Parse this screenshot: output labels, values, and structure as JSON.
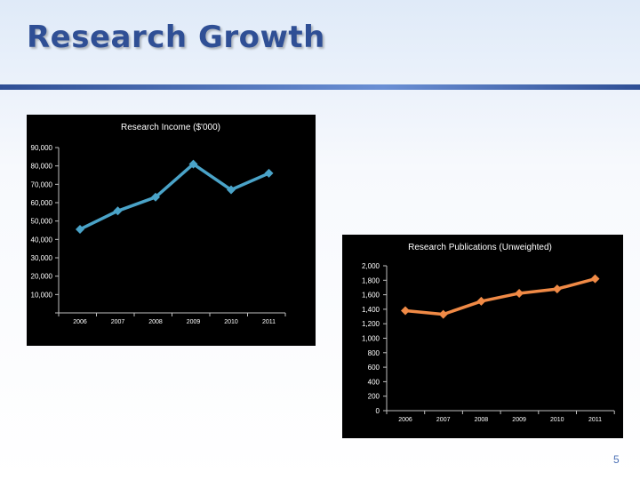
{
  "slide": {
    "title": "Research Growth",
    "page_number": "5"
  },
  "colors": {
    "title": "#2f4f95",
    "plot_bg": "#000000",
    "income_line": "#4aa3c8",
    "publications_line": "#f08a46"
  },
  "chart_data": [
    {
      "type": "line",
      "title": "Research Income ($'000)",
      "xlabel": "",
      "ylabel": "",
      "categories": [
        "2006",
        "2007",
        "2008",
        "2009",
        "2010",
        "2011"
      ],
      "series": [
        {
          "values": [
            45500,
            55500,
            63000,
            81000,
            67000,
            76000
          ]
        }
      ],
      "ylim": [
        0,
        90000
      ],
      "yticks": [
        0,
        10000,
        20000,
        30000,
        40000,
        50000,
        60000,
        70000,
        80000,
        90000
      ],
      "ytick_labels": [
        "",
        "10,000",
        "20,000",
        "30,000",
        "40,000",
        "50,000",
        "60,000",
        "70,000",
        "80,000",
        "90,000"
      ],
      "grid": false,
      "legend": "none",
      "marker": "diamond"
    },
    {
      "type": "line",
      "title": "Research Publications (Unweighted)",
      "xlabel": "",
      "ylabel": "",
      "categories": [
        "2006",
        "2007",
        "2008",
        "2009",
        "2010",
        "2011"
      ],
      "series": [
        {
          "values": [
            1380,
            1330,
            1510,
            1620,
            1680,
            1820
          ]
        }
      ],
      "ylim": [
        0,
        2000
      ],
      "yticks": [
        0,
        200,
        400,
        600,
        800,
        1000,
        1200,
        1400,
        1600,
        1800,
        2000
      ],
      "ytick_labels": [
        "0",
        "200",
        "400",
        "600",
        "800",
        "1,000",
        "1,200",
        "1,400",
        "1,600",
        "1,800",
        "2,000"
      ],
      "grid": false,
      "legend": "none",
      "marker": "diamond"
    }
  ]
}
